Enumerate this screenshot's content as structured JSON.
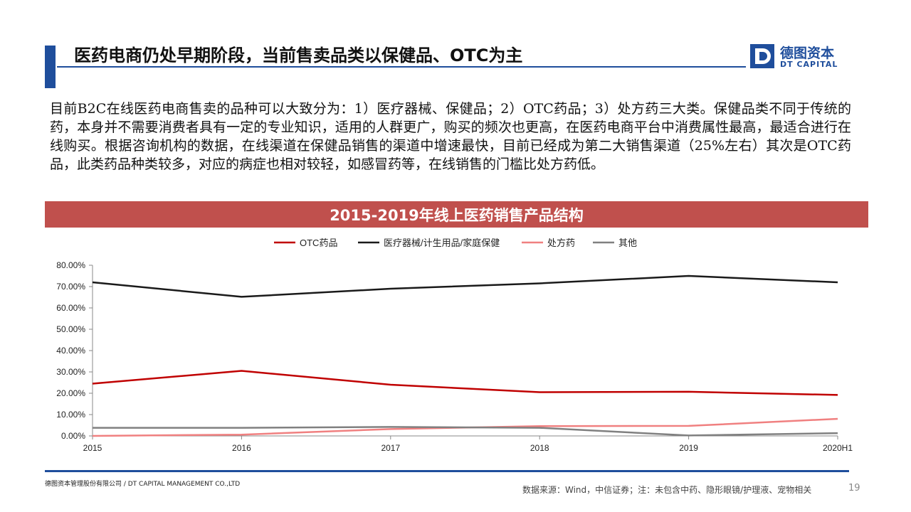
{
  "slide": {
    "title": "医药电商仍处早期阶段，当前售卖品类以保健品、OTC为主",
    "body": "目前B2C在线医药电商售卖的品种可以大致分为：1）医疗器械、保健品；2）OTC药品；3）处方药三大类。保健品类不同于传统的药，本身并不需要消费者具有一定的专业知识，适用的人群更广，购买的频次也更高，在医药电商平台中消费属性最高，最适合进行在线购买。根据咨询机构的数据，在线渠道在保健品销售的渠道中增速最快，目前已经成为第二大销售渠道（25%左右）其次是OTC药品，此类药品种类较多，对应的病症也相对较轻，如感冒药等，在线销售的门槛比处方药低。",
    "footer_company": "德图资本管理股份有限公司 / DT CAPITAL MANAGEMENT CO.,LTD",
    "footer_source": "数据来源：Wind，中信证券；注：未包含中药、隐形眼镜/护理液、宠物相关",
    "page_number": "19"
  },
  "logo": {
    "cn": "德图资本",
    "en": "DT CAPITAL"
  },
  "colors": {
    "brand_blue": "#1f4e9c",
    "header_red": "#c0504d"
  },
  "chart_data": {
    "type": "line",
    "title": "2015-2019年线上医药销售产品结构",
    "categories": [
      "2015",
      "2016",
      "2017",
      "2018",
      "2019",
      "2020H1"
    ],
    "ylim": [
      0,
      80
    ],
    "y_ticks": [
      "0.00%",
      "10.00%",
      "20.00%",
      "30.00%",
      "40.00%",
      "50.00%",
      "60.00%",
      "70.00%",
      "80.00%"
    ],
    "legend_position": "top",
    "grid": false,
    "series": [
      {
        "name": "OTC药品",
        "color": "#c00000",
        "values": [
          24.5,
          30.5,
          24.0,
          20.5,
          20.7,
          19.2
        ]
      },
      {
        "name": "医疗器械/计生用品/家庭保健",
        "color": "#1a1a1a",
        "values": [
          72.0,
          65.2,
          69.0,
          71.5,
          75.0,
          72.0
        ]
      },
      {
        "name": "处方药",
        "color": "#f08080",
        "values": [
          0.0,
          0.6,
          3.2,
          4.6,
          4.7,
          8.0
        ]
      },
      {
        "name": "其他",
        "color": "#808080",
        "values": [
          3.8,
          3.8,
          4.2,
          3.8,
          0.2,
          1.3
        ]
      }
    ]
  }
}
